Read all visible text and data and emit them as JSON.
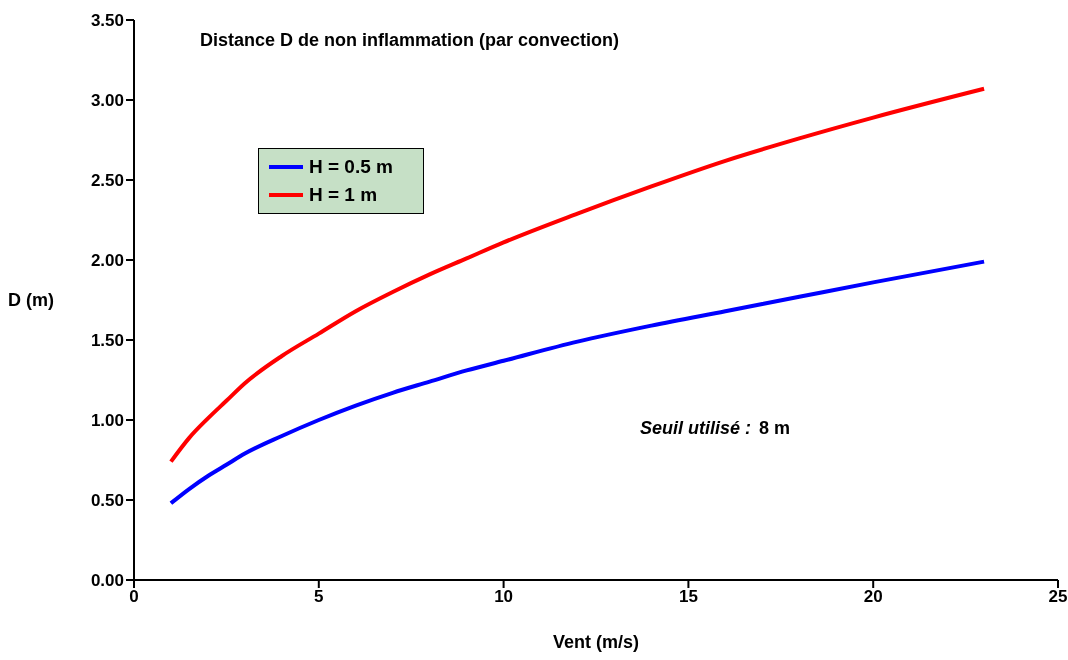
{
  "chart_data": {
    "type": "line",
    "title": "Distance D de non inflammation (par convection)",
    "xlabel": "Vent (m/s)",
    "ylabel": "D (m)",
    "x": [
      1,
      1.5,
      2,
      2.5,
      3,
      4,
      5,
      6,
      7,
      8,
      9,
      10,
      12,
      14,
      16,
      18,
      20,
      23
    ],
    "series": [
      {
        "name": "H = 0.5 m",
        "color": "#0000ff",
        "values": [
          0.48,
          0.57,
          0.65,
          0.72,
          0.79,
          0.9,
          1.0,
          1.09,
          1.17,
          1.24,
          1.31,
          1.37,
          1.49,
          1.59,
          1.68,
          1.77,
          1.86,
          1.99
        ]
      },
      {
        "name": "H = 1 m",
        "color": "#ff0000",
        "values": [
          0.74,
          0.89,
          1.01,
          1.12,
          1.23,
          1.4,
          1.54,
          1.68,
          1.8,
          1.91,
          2.01,
          2.11,
          2.29,
          2.46,
          2.62,
          2.76,
          2.89,
          3.07
        ]
      }
    ],
    "xlim": [
      0,
      25
    ],
    "xticks": [
      0,
      5,
      10,
      15,
      20,
      25
    ],
    "ylim": [
      0,
      3.5
    ],
    "yticks": [
      {
        "value": 0,
        "label": "0.00"
      },
      {
        "value": 0.5,
        "label": "0.50"
      },
      {
        "value": 1,
        "label": "1.00"
      },
      {
        "value": 1.5,
        "label": "1.50"
      },
      {
        "value": 2,
        "label": "2.00"
      },
      {
        "value": 2.5,
        "label": "2.50"
      },
      {
        "value": 3,
        "label": "3.00"
      },
      {
        "value": 3.5,
        "label": "3.50"
      }
    ],
    "annotations": [
      "Seuil utilisé :",
      "8 m"
    ],
    "grid": false,
    "legend": "top left",
    "marker": "none",
    "line_style": "solid"
  }
}
